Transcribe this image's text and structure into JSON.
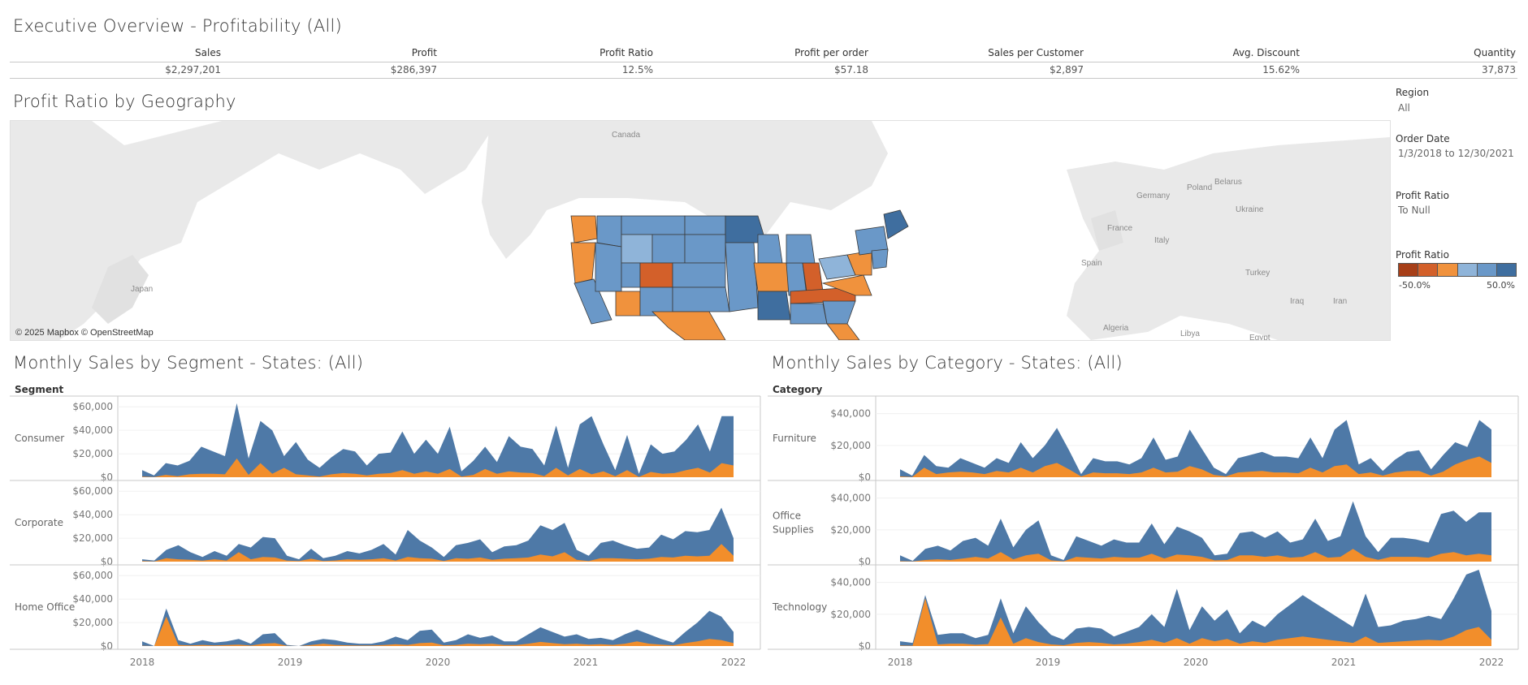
{
  "header": {
    "title": "Executive Overview - Profitability (All)"
  },
  "kpis": [
    {
      "label": "Sales",
      "value": "$2,297,201"
    },
    {
      "label": "Profit",
      "value": "$286,397"
    },
    {
      "label": "Profit Ratio",
      "value": "12.5%"
    },
    {
      "label": "Profit per order",
      "value": "$57.18"
    },
    {
      "label": "Sales per Customer",
      "value": "$2,897"
    },
    {
      "label": "Avg. Discount",
      "value": "15.62%"
    },
    {
      "label": "Quantity",
      "value": "37,873"
    }
  ],
  "map_section": {
    "title": "Profit Ratio by Geography",
    "attribution": "© 2025 Mapbox © OpenStreetMap",
    "places": [
      "Canada",
      "Japan",
      "Germany",
      "Poland",
      "Belarus",
      "Ukraine",
      "France",
      "Italy",
      "Spain",
      "Turkey",
      "Iraq",
      "Iran",
      "Algeria",
      "Libya",
      "Egypt"
    ]
  },
  "filters": {
    "region_label": "Region",
    "region_value": "All",
    "order_date_label": "Order Date",
    "order_date_value": "1/3/2018 to 12/30/2021",
    "profit_ratio_label": "Profit Ratio",
    "profit_ratio_value": "To Null",
    "legend_label": "Profit Ratio",
    "legend_min": "-50.0%",
    "legend_max": "50.0%",
    "legend_colors": [
      "#a73f18",
      "#d3602a",
      "#f0923d",
      "#8fb4d9",
      "#6a98c8",
      "#3f6e9f"
    ]
  },
  "colors": {
    "sales": "#4e79a7",
    "profit": "#f28e2b"
  },
  "segment_chart": {
    "title": "Monthly Sales by Segment - States: (All)",
    "row_header": "Segment",
    "x_ticks": [
      "2018",
      "2019",
      "2020",
      "2021",
      "2022"
    ],
    "chart_data": {
      "type": "area",
      "x_range": [
        "2018-01",
        "2021-12"
      ],
      "panels": [
        {
          "name": "Consumer",
          "ylim": [
            0,
            65000
          ],
          "y_ticks": [
            "$60,000",
            "$40,000",
            "$20,000",
            "$0"
          ],
          "y_tick_values": [
            60000,
            40000,
            20000,
            0
          ],
          "sales": [
            6000,
            1500,
            12000,
            10000,
            14000,
            26000,
            22000,
            18000,
            63000,
            16000,
            48000,
            40000,
            18000,
            30000,
            15000,
            8000,
            17000,
            24000,
            22000,
            10000,
            20000,
            21000,
            39000,
            20000,
            32000,
            20000,
            43000,
            5000,
            14000,
            26000,
            13000,
            35000,
            26000,
            24000,
            10000,
            44000,
            8000,
            45000,
            52000,
            28000,
            6000,
            36000,
            3000,
            28000,
            20000,
            22000,
            32000,
            45000,
            22000,
            52000,
            52000
          ],
          "profit": [
            500,
            200,
            2000,
            800,
            2500,
            3000,
            3000,
            2500,
            16000,
            2000,
            12000,
            3000,
            8000,
            2500,
            1500,
            500,
            2500,
            3500,
            3000,
            1500,
            3000,
            3500,
            6000,
            3000,
            5000,
            3000,
            7000,
            500,
            2000,
            7000,
            3000,
            5000,
            4000,
            3500,
            1000,
            8000,
            1500,
            7000,
            2500,
            5000,
            800,
            6000,
            300,
            4500,
            3000,
            3500,
            6000,
            8000,
            4000,
            12000,
            10000
          ]
        },
        {
          "name": "Corporate",
          "ylim": [
            0,
            65000
          ],
          "y_ticks": [
            "$60,000",
            "$40,000",
            "$20,000",
            "$0"
          ],
          "y_tick_values": [
            60000,
            40000,
            20000,
            0
          ],
          "sales": [
            2000,
            1000,
            10000,
            14000,
            8000,
            4000,
            9000,
            5000,
            15000,
            12000,
            21000,
            20000,
            5000,
            2000,
            11000,
            3000,
            5000,
            9000,
            7000,
            10000,
            15000,
            6000,
            27000,
            18000,
            12000,
            4000,
            14000,
            16000,
            19000,
            8000,
            13000,
            14000,
            18000,
            31000,
            27000,
            33000,
            10000,
            5000,
            16000,
            18000,
            14000,
            11000,
            12000,
            23000,
            19000,
            26000,
            25000,
            27000,
            46000,
            20000
          ],
          "profit": [
            500,
            200,
            3000,
            2000,
            1500,
            800,
            2000,
            1000,
            8000,
            2000,
            4000,
            3500,
            800,
            500,
            2500,
            500,
            1000,
            2000,
            1500,
            2000,
            3000,
            1000,
            4000,
            3000,
            2500,
            500,
            3000,
            2500,
            3500,
            1500,
            2500,
            3000,
            3500,
            6000,
            4500,
            8000,
            1500,
            500,
            3000,
            3000,
            2500,
            2000,
            2500,
            4000,
            3500,
            5000,
            4500,
            5000,
            15000,
            5000
          ]
        },
        {
          "name": "Home Office",
          "ylim": [
            0,
            65000
          ],
          "y_ticks": [
            "$60,000",
            "$40,000",
            "$20,000",
            "$0"
          ],
          "y_tick_values": [
            60000,
            40000,
            20000,
            0
          ],
          "sales": [
            4000,
            0,
            32000,
            5000,
            2000,
            5000,
            3000,
            4000,
            6000,
            2000,
            10000,
            11000,
            1000,
            0,
            4000,
            6000,
            5000,
            3000,
            2000,
            2000,
            4000,
            8000,
            5000,
            13000,
            14000,
            3000,
            5000,
            10000,
            7000,
            9000,
            4000,
            4000,
            10000,
            16000,
            12000,
            8000,
            10000,
            6000,
            7000,
            5000,
            10000,
            14000,
            10000,
            6000,
            3000,
            12000,
            20000,
            30000,
            25000,
            12000
          ],
          "profit": [
            300,
            0,
            25000,
            1000,
            500,
            1000,
            500,
            800,
            1200,
            400,
            2000,
            2500,
            200,
            0,
            800,
            2000,
            1000,
            600,
            400,
            400,
            800,
            1500,
            1000,
            2500,
            3000,
            600,
            1000,
            2000,
            1500,
            2000,
            800,
            800,
            2000,
            3500,
            2500,
            1500,
            2000,
            1200,
            1500,
            1000,
            2000,
            4000,
            2000,
            1200,
            600,
            2500,
            4000,
            6000,
            5000,
            2500
          ]
        }
      ]
    }
  },
  "category_chart": {
    "title": "Monthly Sales by Category - States: (All)",
    "row_header": "Category",
    "x_ticks": [
      "2018",
      "2019",
      "2020",
      "2021",
      "2022"
    ],
    "chart_data": {
      "type": "area",
      "x_range": [
        "2018-01",
        "2021-12"
      ],
      "panels": [
        {
          "name": "Furniture",
          "ylim": [
            0,
            48000
          ],
          "y_ticks": [
            "$40,000",
            "$20,000",
            "$0"
          ],
          "y_tick_values": [
            40000,
            20000,
            0
          ],
          "sales": [
            5000,
            1000,
            14000,
            7000,
            6000,
            12000,
            9000,
            6000,
            12000,
            9000,
            22000,
            12000,
            20000,
            31000,
            17000,
            2000,
            12000,
            10000,
            10000,
            8000,
            12000,
            25000,
            11000,
            13000,
            30000,
            18000,
            6000,
            2000,
            12000,
            14000,
            16000,
            13000,
            13000,
            12000,
            25000,
            12000,
            30000,
            36000,
            8000,
            12000,
            4000,
            11000,
            16000,
            17000,
            5000,
            14000,
            22000,
            19000,
            36000,
            30000
          ],
          "profit": [
            500,
            100,
            6000,
            2000,
            3000,
            3500,
            3000,
            2000,
            4000,
            3000,
            6000,
            3000,
            7000,
            9000,
            5000,
            500,
            3000,
            2500,
            2500,
            2000,
            3000,
            6000,
            3000,
            3500,
            7000,
            5000,
            1500,
            500,
            3000,
            3500,
            4000,
            3000,
            3000,
            2500,
            6000,
            3000,
            7000,
            8000,
            2000,
            3000,
            1000,
            3000,
            4000,
            4000,
            1000,
            3500,
            8000,
            11000,
            13000,
            9000
          ]
        },
        {
          "name": "Office\nSupplies",
          "ylim": [
            0,
            48000
          ],
          "y_ticks": [
            "$40,000",
            "$20,000",
            "$0"
          ],
          "y_tick_values": [
            40000,
            20000,
            0
          ],
          "sales": [
            4000,
            500,
            8000,
            10000,
            7000,
            13000,
            15000,
            10000,
            27000,
            9000,
            20000,
            26000,
            4000,
            1000,
            16000,
            13000,
            10000,
            14000,
            12000,
            12000,
            24000,
            11000,
            22000,
            19000,
            15000,
            4000,
            5000,
            18000,
            19000,
            15000,
            19000,
            12000,
            14000,
            27000,
            13000,
            16000,
            38000,
            16000,
            6000,
            15000,
            15000,
            14000,
            12000,
            30000,
            32000,
            25000,
            31000,
            31000
          ],
          "profit": [
            300,
            100,
            1000,
            1500,
            1000,
            2000,
            3000,
            2000,
            6000,
            1500,
            4000,
            5000,
            800,
            200,
            3000,
            2500,
            2000,
            3000,
            2500,
            2500,
            5000,
            2000,
            4500,
            4000,
            3000,
            800,
            1000,
            4000,
            4000,
            3000,
            4000,
            2500,
            3000,
            6000,
            2500,
            3000,
            8000,
            3000,
            1200,
            3000,
            3000,
            3000,
            2500,
            5000,
            6000,
            4000,
            5000,
            4000
          ]
        },
        {
          "name": "Technology",
          "ylim": [
            0,
            48000
          ],
          "y_ticks": [
            "$40,000",
            "$20,000",
            "$0"
          ],
          "y_tick_values": [
            40000,
            20000,
            0
          ],
          "sales": [
            3000,
            2000,
            32000,
            7000,
            8000,
            8000,
            5000,
            7000,
            30000,
            8000,
            25000,
            15000,
            7000,
            4000,
            11000,
            12000,
            11000,
            6000,
            9000,
            12000,
            20000,
            12000,
            36000,
            10000,
            25000,
            16000,
            23000,
            8000,
            16000,
            12000,
            20000,
            26000,
            32000,
            27000,
            22000,
            17000,
            12000,
            33000,
            12000,
            13000,
            16000,
            17000,
            19000,
            17000,
            30000,
            45000,
            48000,
            22000
          ],
          "profit": [
            300,
            200,
            30000,
            1000,
            1500,
            1500,
            800,
            1200,
            18000,
            1500,
            5000,
            2500,
            1000,
            500,
            2000,
            2500,
            2000,
            1000,
            1500,
            2500,
            4000,
            2000,
            5000,
            1500,
            5000,
            3000,
            4500,
            1500,
            3000,
            2000,
            4000,
            5000,
            6000,
            5000,
            4000,
            3000,
            2000,
            6000,
            2000,
            2500,
            3000,
            3500,
            4000,
            3500,
            6000,
            10000,
            12000,
            4000
          ]
        }
      ]
    }
  }
}
